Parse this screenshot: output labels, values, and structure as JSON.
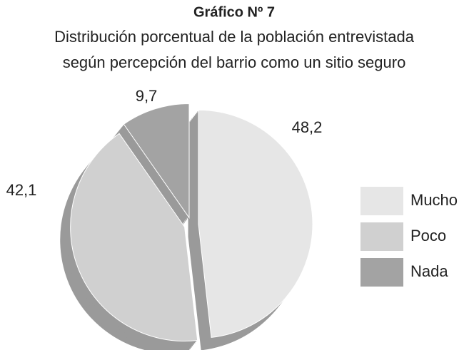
{
  "chart_data": {
    "type": "pie",
    "title": "Gráfico Nº 7",
    "subtitle": [
      "Distribución porcentual de la población entrevistada",
      "según percepción del barrio como un sitio seguro"
    ],
    "categories": [
      "Mucho",
      "Poco",
      "Nada"
    ],
    "values": [
      48.2,
      42.1,
      9.7
    ],
    "value_labels": [
      "48,2",
      "42,1",
      "9,7"
    ],
    "colors": [
      "#e6e6e6",
      "#d0d0d0",
      "#a3a3a3"
    ],
    "legend": "right"
  }
}
